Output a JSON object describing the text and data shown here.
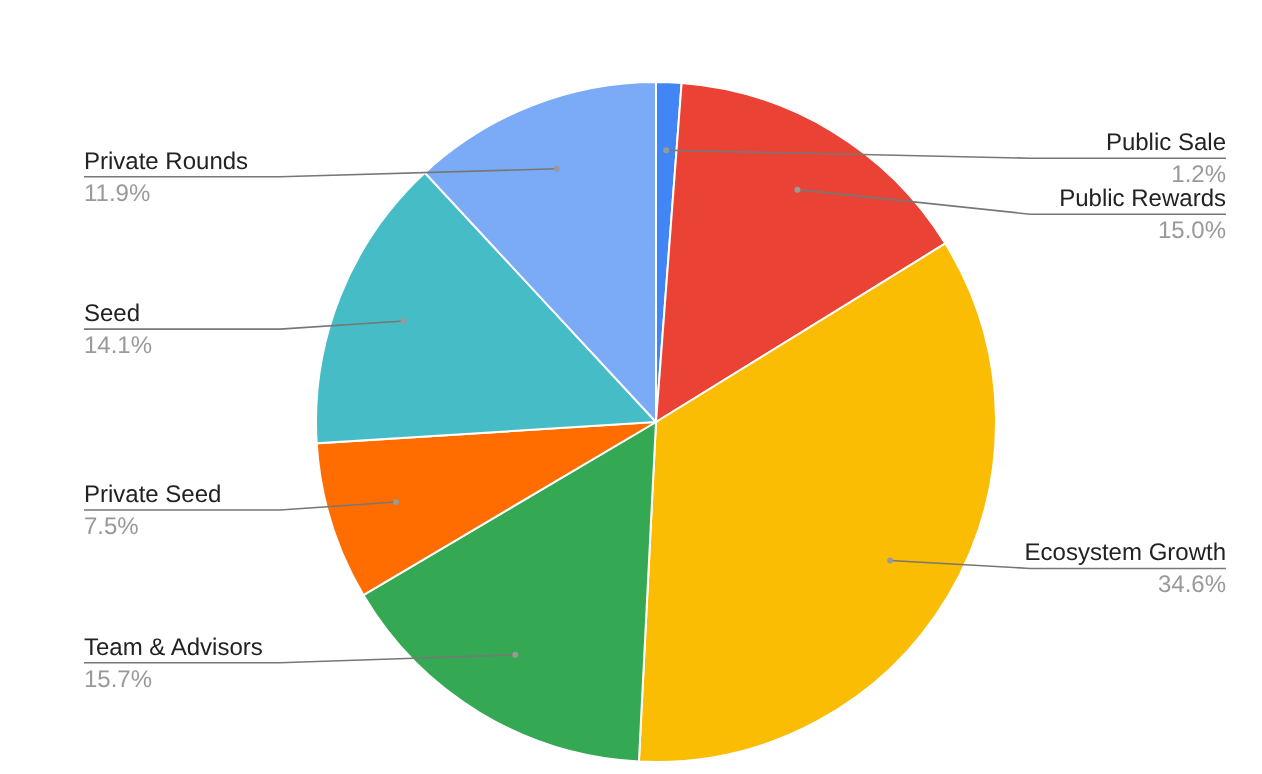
{
  "chart_data": {
    "type": "pie",
    "categories": [
      "Public Sale",
      "Public Rewards",
      "Ecosystem Growth",
      "Team & Advisors",
      "Private Seed",
      "Seed",
      "Private Rounds"
    ],
    "values": [
      1.2,
      15.0,
      34.6,
      15.7,
      7.5,
      14.1,
      11.9
    ],
    "value_labels": [
      "1.2%",
      "15.0%",
      "34.6%",
      "15.7%",
      "7.5%",
      "14.1%",
      "11.9%"
    ],
    "colors": [
      "#4285f4",
      "#ea4335",
      "#fbbc04",
      "#34a853",
      "#ff6d01",
      "#46bdc6",
      "#7baaf7"
    ],
    "legend": false
  }
}
